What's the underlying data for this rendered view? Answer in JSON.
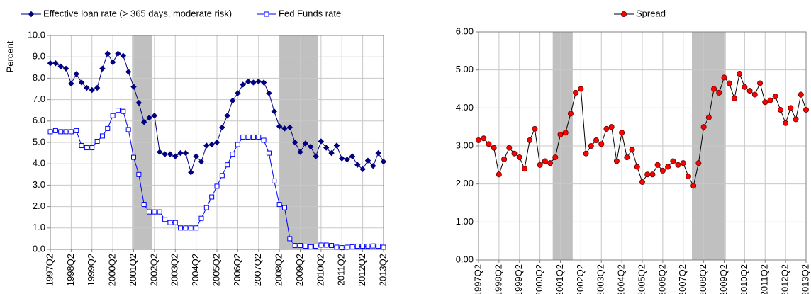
{
  "chart_data": [
    {
      "type": "line",
      "ylabel": "Percent",
      "categories": [
        "1997Q2",
        null,
        null,
        null,
        "1998Q2",
        null,
        null,
        null,
        "1999Q2",
        null,
        null,
        null,
        "2000Q2",
        null,
        null,
        null,
        "2001Q2",
        null,
        null,
        null,
        "2002Q2",
        null,
        null,
        null,
        "2003Q2",
        null,
        null,
        null,
        "2004Q2",
        null,
        null,
        null,
        "2005Q2",
        null,
        null,
        null,
        "2006Q2",
        null,
        null,
        null,
        "2007Q2",
        null,
        null,
        null,
        "2008Q2",
        null,
        null,
        null,
        "2009Q2",
        null,
        null,
        null,
        "2010Q2",
        null,
        null,
        null,
        "2011Q2",
        null,
        null,
        null,
        "2012Q2",
        null,
        null,
        null,
        "2013Q2"
      ],
      "series": [
        {
          "name": "Effective loan rate (> 365 days, moderate risk)",
          "color": "#000080",
          "marker": "diamond",
          "values": [
            8.7,
            8.7,
            8.55,
            8.45,
            7.75,
            8.2,
            7.8,
            7.55,
            7.45,
            7.55,
            8.45,
            9.15,
            8.75,
            9.15,
            9.05,
            8.3,
            7.6,
            6.85,
            5.95,
            6.15,
            6.25,
            4.55,
            4.45,
            4.45,
            4.35,
            4.5,
            4.5,
            3.6,
            4.35,
            4.1,
            4.85,
            4.9,
            5.0,
            5.7,
            6.25,
            6.95,
            7.3,
            7.7,
            7.85,
            7.8,
            7.85,
            7.8,
            7.3,
            6.45,
            5.75,
            5.65,
            5.7,
            5.0,
            4.55,
            4.95,
            4.8,
            4.35,
            5.05,
            4.75,
            4.5,
            4.85,
            4.25,
            4.2,
            4.35,
            3.95,
            3.75,
            4.15,
            3.9,
            4.5,
            4.1
          ]
        },
        {
          "name": "Fed Funds rate",
          "color": "#0000ff",
          "marker": "square",
          "values": [
            5.5,
            5.55,
            5.5,
            5.5,
            5.5,
            5.55,
            4.85,
            4.75,
            4.75,
            5.05,
            5.3,
            5.65,
            6.25,
            6.5,
            6.45,
            5.6,
            4.3,
            3.5,
            2.1,
            1.75,
            1.75,
            1.75,
            1.4,
            1.25,
            1.25,
            1.0,
            1.0,
            1.0,
            1.0,
            1.45,
            1.95,
            2.45,
            2.95,
            3.45,
            3.95,
            4.45,
            4.9,
            5.25,
            5.25,
            5.25,
            5.25,
            5.1,
            4.5,
            3.2,
            2.1,
            1.95,
            0.5,
            0.18,
            0.18,
            0.15,
            0.12,
            0.15,
            0.2,
            0.2,
            0.18,
            0.1,
            0.08,
            0.1,
            0.12,
            0.15,
            0.15,
            0.15,
            0.16,
            0.15,
            0.1
          ]
        }
      ],
      "ylim": [
        0,
        10
      ],
      "yticks": [
        {
          "value": 0,
          "label": "0.0"
        },
        {
          "value": 1,
          "label": "1.0"
        },
        {
          "value": 2,
          "label": "2.0"
        },
        {
          "value": 3,
          "label": "3.0"
        },
        {
          "value": 4,
          "label": "4.0"
        },
        {
          "value": 5,
          "label": "5.0"
        },
        {
          "value": 6,
          "label": "6.0"
        },
        {
          "value": 7,
          "label": "7.0"
        },
        {
          "value": 8,
          "label": "8.0"
        },
        {
          "value": 9,
          "label": "9.0"
        },
        {
          "value": 10,
          "label": "10.0"
        }
      ],
      "grid": true,
      "bands": [
        [
          15.7,
          19.6
        ],
        [
          43.9,
          51.4
        ]
      ],
      "band_color": "#c0c0c0",
      "legend": "top-left"
    },
    {
      "type": "line",
      "categories": [
        "1997Q2",
        null,
        null,
        null,
        "1998Q2",
        null,
        null,
        null,
        "1999Q2",
        null,
        null,
        null,
        "2000Q2",
        null,
        null,
        null,
        "2001Q2",
        null,
        null,
        null,
        "2002Q2",
        null,
        null,
        null,
        "2003Q2",
        null,
        null,
        null,
        "2004Q2",
        null,
        null,
        null,
        "2005Q2",
        null,
        null,
        null,
        "2006Q2",
        null,
        null,
        null,
        "2007Q2",
        null,
        null,
        null,
        "2008Q2",
        null,
        null,
        null,
        "2009Q2",
        null,
        null,
        null,
        "2010Q2",
        null,
        null,
        null,
        "2011Q2",
        null,
        null,
        null,
        "2012Q2",
        null,
        null,
        null,
        "2013Q2"
      ],
      "series": [
        {
          "name": "Spread",
          "color": "#000000",
          "marker": "circle",
          "marker_color": "#ff0000",
          "values": [
            3.15,
            3.2,
            3.05,
            2.95,
            2.25,
            2.65,
            2.95,
            2.8,
            2.7,
            2.4,
            3.15,
            3.45,
            2.5,
            2.6,
            2.55,
            2.7,
            3.3,
            3.35,
            3.85,
            4.4,
            4.5,
            2.8,
            3.0,
            3.15,
            3.05,
            3.45,
            3.5,
            2.6,
            3.35,
            2.7,
            2.9,
            2.45,
            2.05,
            2.25,
            2.25,
            2.5,
            2.35,
            2.45,
            2.6,
            2.5,
            2.55,
            2.2,
            1.95,
            2.55,
            3.5,
            3.75,
            4.5,
            4.4,
            4.8,
            4.65,
            4.25,
            4.9,
            4.55,
            4.45,
            4.35,
            4.65,
            4.15,
            4.2,
            4.3,
            3.95,
            3.6,
            4.0,
            3.7,
            4.35,
            3.95
          ]
        }
      ],
      "ylim": [
        0,
        6
      ],
      "yticks": [
        {
          "value": 0,
          "label": "0.00"
        },
        {
          "value": 1,
          "label": "1.00"
        },
        {
          "value": 2,
          "label": "2.00"
        },
        {
          "value": 3,
          "label": "3.00"
        },
        {
          "value": 4,
          "label": "4.00"
        },
        {
          "value": 5,
          "label": "5.00"
        },
        {
          "value": 6,
          "label": "6.00"
        }
      ],
      "grid": true,
      "bands": [
        [
          14.5,
          18.4
        ],
        [
          41.7,
          48.3
        ]
      ],
      "band_color": "#c0c0c0",
      "legend": "top-center"
    }
  ]
}
